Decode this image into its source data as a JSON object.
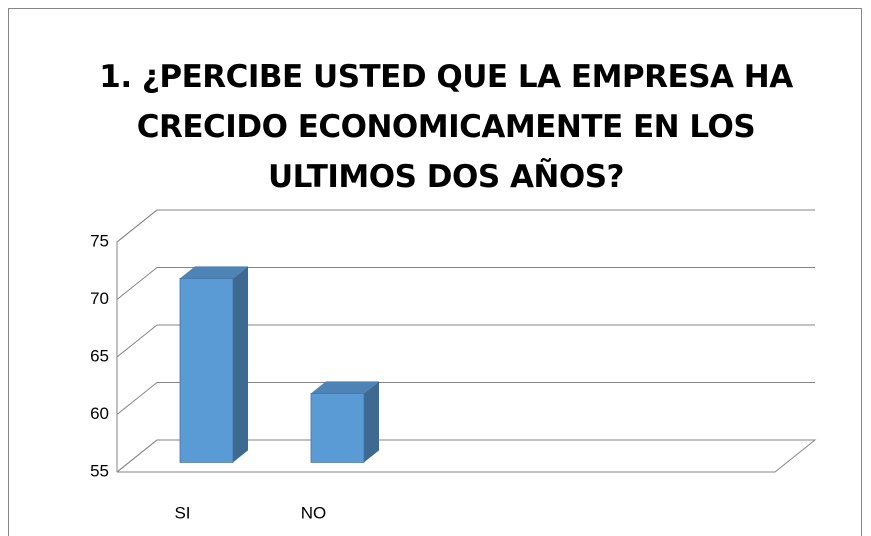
{
  "chart_data": {
    "type": "bar3d",
    "title": "1. ¿PERCIBE USTED QUE LA EMPRESA HA CRECIDO ECONOMICAMENTE EN LOS ULTIMOS DOS AÑOS?",
    "categories": [
      "SI",
      "NO"
    ],
    "values": [
      71,
      61
    ],
    "color": "#5b9bd5",
    "ylim": [
      55,
      75
    ],
    "yticks": [
      55,
      60,
      65,
      70,
      75
    ],
    "grid": true
  }
}
